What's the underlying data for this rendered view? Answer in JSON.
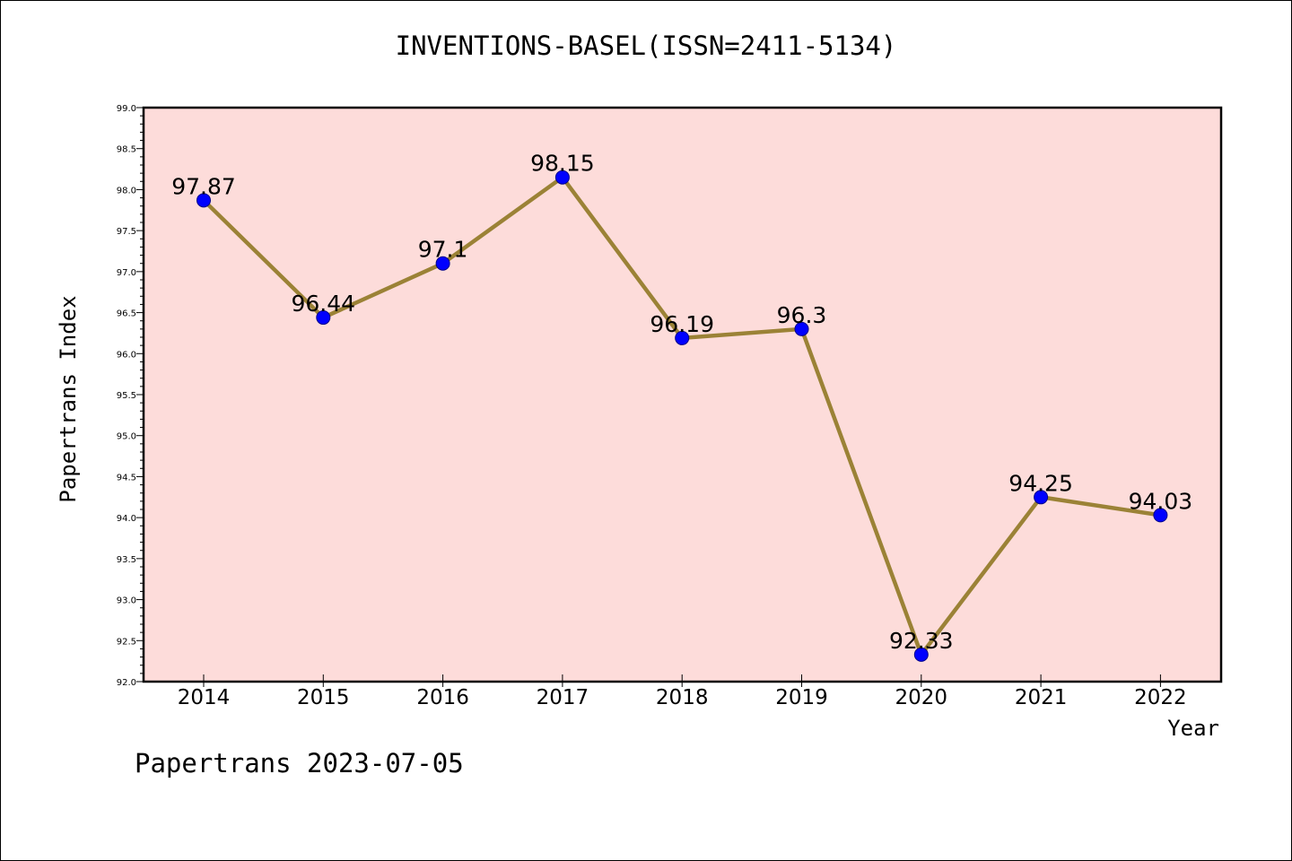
{
  "title": "INVENTIONS-BASEL(ISSN=2411-5134)",
  "footer": "Papertrans 2023-07-05",
  "colors": {
    "plot_background": "#fddcda",
    "line": "#9b8236",
    "marker": "#0000ff",
    "axis": "#000000"
  },
  "chart_data": {
    "type": "line",
    "categories": [
      "2014",
      "2015",
      "2016",
      "2017",
      "2018",
      "2019",
      "2020",
      "2021",
      "2022"
    ],
    "series": [
      {
        "values": [
          97.87,
          96.44,
          97.1,
          98.15,
          96.19,
          96.3,
          92.33,
          94.25,
          94.03
        ]
      }
    ],
    "data_labels": [
      "97.87",
      "96.44",
      "97.1",
      "98.15",
      "96.19",
      "96.3",
      "92.33",
      "94.25",
      "94.03"
    ],
    "xlabel": "Year",
    "ylabel": "Papertrans Index",
    "ylim": [
      92.0,
      99.0
    ],
    "yticks": [
      "92.0",
      "92.5",
      "93.0",
      "93.5",
      "94.0",
      "94.5",
      "95.0",
      "95.5",
      "96.0",
      "96.5",
      "97.0",
      "97.5",
      "98.0",
      "98.5",
      "99.0"
    ],
    "grid": false,
    "legend": "none"
  }
}
